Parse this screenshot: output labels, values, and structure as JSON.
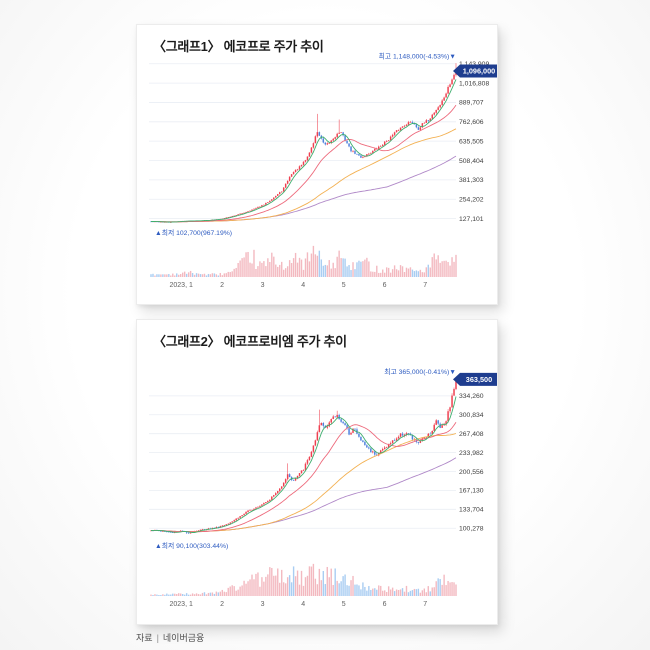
{
  "page": {
    "footer": {
      "source_label": "자료",
      "divider": "|",
      "source_value": "네이버금융"
    }
  },
  "style": {
    "candle_up": "#ef4050",
    "candle_down": "#4f82dd",
    "ma5": "#3fae6e",
    "ma20": "#ed6a7c",
    "ma60": "#f3b153",
    "ma120": "#b089c8",
    "volume_up": "#f3b9c0",
    "volume_down": "#a9cdf2",
    "badge_bg": "#1e3d8f",
    "badge_text": "#ffffff",
    "annotation_blue": "#2d5bc0",
    "grid": "#eaeef4",
    "axis_label": "#404040",
    "x_label": "#606060"
  },
  "chart_data": [
    {
      "type": "candlestick",
      "title": "〈그래프1〉 에코프로 주가 추이",
      "high_annotation": {
        "text": "최고 1,148,000(-4.53%)",
        "arrow": "▼",
        "value": 1148000
      },
      "low_annotation": {
        "text": "최저 102,700(967.19%)",
        "arrow": "▲",
        "value": 102700,
        "t": 0.06
      },
      "last_price": {
        "label": "1,096,000",
        "value": 1096000
      },
      "ylim": [
        85000,
        1175000
      ],
      "y_ticks": [
        {
          "label": "1,143,909",
          "value": 1143909
        },
        {
          "label": "1,016,808",
          "value": 1016808
        },
        {
          "label": "889,707",
          "value": 889707
        },
        {
          "label": "762,606",
          "value": 762606
        },
        {
          "label": "635,505",
          "value": 635505
        },
        {
          "label": "508,404",
          "value": 508404
        },
        {
          "label": "381,303",
          "value": 381303
        },
        {
          "label": "254,202",
          "value": 254202
        },
        {
          "label": "127,101",
          "value": 127101
        }
      ],
      "x_ticks": [
        {
          "label": "2023, 1",
          "t": 0.099
        },
        {
          "label": "2",
          "t": 0.233
        },
        {
          "label": "3",
          "t": 0.366
        },
        {
          "label": "4",
          "t": 0.499
        },
        {
          "label": "5",
          "t": 0.632
        },
        {
          "label": "6",
          "t": 0.766
        },
        {
          "label": "7",
          "t": 0.899
        }
      ],
      "ma_windows": [
        5,
        20,
        60,
        120
      ],
      "close_anchors": [
        [
          0,
          108000
        ],
        [
          0.04,
          105000
        ],
        [
          0.06,
          103500
        ],
        [
          0.1,
          110000
        ],
        [
          0.14,
          113000
        ],
        [
          0.18,
          116000
        ],
        [
          0.22,
          122000
        ],
        [
          0.26,
          140000
        ],
        [
          0.3,
          163000
        ],
        [
          0.33,
          185000
        ],
        [
          0.37,
          218000
        ],
        [
          0.4,
          262000
        ],
        [
          0.43,
          310000
        ],
        [
          0.46,
          420000
        ],
        [
          0.49,
          470000
        ],
        [
          0.51,
          520000
        ],
        [
          0.53,
          610000
        ],
        [
          0.545,
          700000
        ],
        [
          0.555,
          660000
        ],
        [
          0.57,
          605000
        ],
        [
          0.585,
          625000
        ],
        [
          0.6,
          660000
        ],
        [
          0.62,
          700000
        ],
        [
          0.635,
          650000
        ],
        [
          0.655,
          575000
        ],
        [
          0.69,
          528000
        ],
        [
          0.72,
          562000
        ],
        [
          0.75,
          600000
        ],
        [
          0.78,
          650000
        ],
        [
          0.81,
          710000
        ],
        [
          0.84,
          755000
        ],
        [
          0.86,
          760000
        ],
        [
          0.875,
          715000
        ],
        [
          0.89,
          745000
        ],
        [
          0.91,
          775000
        ],
        [
          0.93,
          830000
        ],
        [
          0.95,
          880000
        ],
        [
          0.965,
          940000
        ],
        [
          0.98,
          1010000
        ],
        [
          1,
          1096000
        ]
      ],
      "wick_spikes": [
        [
          0.545,
          815000
        ],
        [
          0.62,
          778000
        ]
      ],
      "volume_anchors": [
        [
          0,
          0.1
        ],
        [
          0.08,
          0.12
        ],
        [
          0.13,
          0.18
        ],
        [
          0.18,
          0.1
        ],
        [
          0.23,
          0.12
        ],
        [
          0.27,
          0.22
        ],
        [
          0.3,
          0.55
        ],
        [
          0.33,
          0.95
        ],
        [
          0.35,
          0.45
        ],
        [
          0.38,
          0.55
        ],
        [
          0.4,
          0.75
        ],
        [
          0.43,
          0.5
        ],
        [
          0.45,
          0.6
        ],
        [
          0.47,
          0.7
        ],
        [
          0.5,
          0.55
        ],
        [
          0.52,
          0.85
        ],
        [
          0.545,
          1
        ],
        [
          0.56,
          0.6
        ],
        [
          0.58,
          0.45
        ],
        [
          0.6,
          0.55
        ],
        [
          0.62,
          0.9
        ],
        [
          0.64,
          0.5
        ],
        [
          0.66,
          0.4
        ],
        [
          0.68,
          0.55
        ],
        [
          0.7,
          0.65
        ],
        [
          0.73,
          0.35
        ],
        [
          0.76,
          0.3
        ],
        [
          0.79,
          0.35
        ],
        [
          0.82,
          0.4
        ],
        [
          0.85,
          0.3
        ],
        [
          0.87,
          0.25
        ],
        [
          0.9,
          0.3
        ],
        [
          0.92,
          0.55
        ],
        [
          0.94,
          0.85
        ],
        [
          0.96,
          0.45
        ],
        [
          0.98,
          0.55
        ],
        [
          1,
          0.65
        ]
      ]
    },
    {
      "type": "candlestick",
      "title": "〈그래프2〉 에코프로비엠 주가 추이",
      "high_annotation": {
        "text": "최고 365,000(-0.41%)",
        "arrow": "▼",
        "value": 365000
      },
      "low_annotation": {
        "text": "최저 90,100(303.44%)",
        "arrow": "▲",
        "value": 90100,
        "t": 0.12
      },
      "last_price": {
        "label": "363,500",
        "value": 363500
      },
      "ylim": [
        83000,
        380000
      ],
      "y_ticks": [
        {
          "label": "334,260",
          "value": 334260
        },
        {
          "label": "300,834",
          "value": 300834
        },
        {
          "label": "267,408",
          "value": 267408
        },
        {
          "label": "233,982",
          "value": 233982
        },
        {
          "label": "200,556",
          "value": 200556
        },
        {
          "label": "167,130",
          "value": 167130
        },
        {
          "label": "133,704",
          "value": 133704
        },
        {
          "label": "100,278",
          "value": 100278
        }
      ],
      "x_ticks": [
        {
          "label": "2023, 1",
          "t": 0.099
        },
        {
          "label": "2",
          "t": 0.233
        },
        {
          "label": "3",
          "t": 0.366
        },
        {
          "label": "4",
          "t": 0.499
        },
        {
          "label": "5",
          "t": 0.632
        },
        {
          "label": "6",
          "t": 0.766
        },
        {
          "label": "7",
          "t": 0.899
        }
      ],
      "ma_windows": [
        5,
        20,
        60,
        120
      ],
      "close_anchors": [
        [
          0,
          97000
        ],
        [
          0.04,
          95000
        ],
        [
          0.07,
          92500
        ],
        [
          0.1,
          95500
        ],
        [
          0.12,
          91500
        ],
        [
          0.15,
          96000
        ],
        [
          0.18,
          99000
        ],
        [
          0.21,
          101000
        ],
        [
          0.24,
          106000
        ],
        [
          0.27,
          114000
        ],
        [
          0.3,
          124000
        ],
        [
          0.33,
          134000
        ],
        [
          0.36,
          142000
        ],
        [
          0.39,
          152000
        ],
        [
          0.42,
          168000
        ],
        [
          0.45,
          196000
        ],
        [
          0.465,
          183000
        ],
        [
          0.48,
          192000
        ],
        [
          0.5,
          205000
        ],
        [
          0.52,
          228000
        ],
        [
          0.54,
          255000
        ],
        [
          0.555,
          288000
        ],
        [
          0.57,
          278000
        ],
        [
          0.59,
          292000
        ],
        [
          0.61,
          300000
        ],
        [
          0.63,
          286000
        ],
        [
          0.65,
          268000
        ],
        [
          0.665,
          278000
        ],
        [
          0.68,
          262000
        ],
        [
          0.7,
          248000
        ],
        [
          0.72,
          237000
        ],
        [
          0.74,
          231000
        ],
        [
          0.765,
          242000
        ],
        [
          0.79,
          253000
        ],
        [
          0.82,
          266000
        ],
        [
          0.84,
          269000
        ],
        [
          0.86,
          256000
        ],
        [
          0.88,
          251000
        ],
        [
          0.9,
          264000
        ],
        [
          0.92,
          271000
        ],
        [
          0.935,
          290000
        ],
        [
          0.95,
          279000
        ],
        [
          0.965,
          288000
        ],
        [
          0.98,
          316000
        ],
        [
          1,
          363500
        ]
      ],
      "wick_spikes": [
        [
          0.45,
          215000
        ],
        [
          0.555,
          310000
        ],
        [
          0.61,
          308000
        ]
      ],
      "volume_anchors": [
        [
          0,
          0.06
        ],
        [
          0.1,
          0.08
        ],
        [
          0.15,
          0.1
        ],
        [
          0.2,
          0.12
        ],
        [
          0.25,
          0.25
        ],
        [
          0.3,
          0.45
        ],
        [
          0.33,
          0.8
        ],
        [
          0.36,
          0.65
        ],
        [
          0.4,
          0.9
        ],
        [
          0.44,
          0.75
        ],
        [
          0.47,
          0.85
        ],
        [
          0.5,
          0.7
        ],
        [
          0.53,
          0.95
        ],
        [
          0.56,
          0.8
        ],
        [
          0.6,
          0.85
        ],
        [
          0.63,
          0.6
        ],
        [
          0.66,
          0.7
        ],
        [
          0.7,
          0.45
        ],
        [
          0.73,
          0.35
        ],
        [
          0.76,
          0.3
        ],
        [
          0.8,
          0.25
        ],
        [
          0.84,
          0.3
        ],
        [
          0.87,
          0.2
        ],
        [
          0.9,
          0.25
        ],
        [
          0.93,
          0.35
        ],
        [
          0.96,
          0.75
        ],
        [
          0.98,
          0.95
        ],
        [
          1,
          0.55
        ]
      ]
    }
  ]
}
